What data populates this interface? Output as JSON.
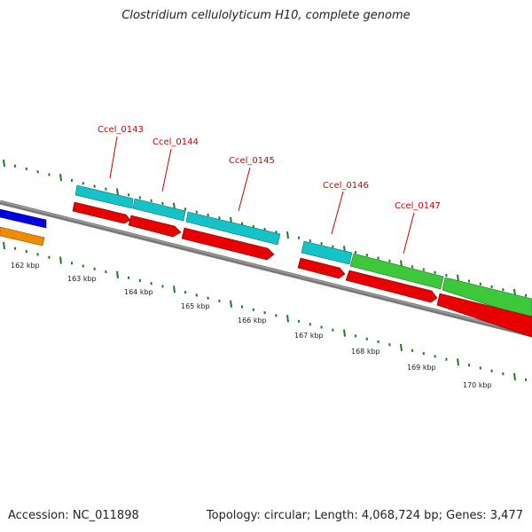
{
  "title": "Clostridium cellulolyticum H10, complete genome",
  "footer": {
    "accession": "Accession: NC_011898",
    "summary": "Topology: circular; Length: 4,068,724 bp; Genes: 3,477"
  },
  "ruler": [
    "162 kbp",
    "163 kbp",
    "164 kbp",
    "165 kbp",
    "166 kbp",
    "167 kbp",
    "168 kbp",
    "169 kbp",
    "170 kbp"
  ],
  "gene_labels": [
    "Ccel_0143",
    "Ccel_0144",
    "Ccel_0145",
    "Ccel_0146",
    "Ccel_0147"
  ],
  "colors": {
    "cds": "#e80000",
    "gene_cyan": "#14c2c8",
    "gene_green": "#3cc83a",
    "gene_blue": "#0000e6",
    "gene_orange": "#f08a00",
    "backbone": "#7a7a7a",
    "tick": "#1f7a1f",
    "label": "#cc0000"
  }
}
